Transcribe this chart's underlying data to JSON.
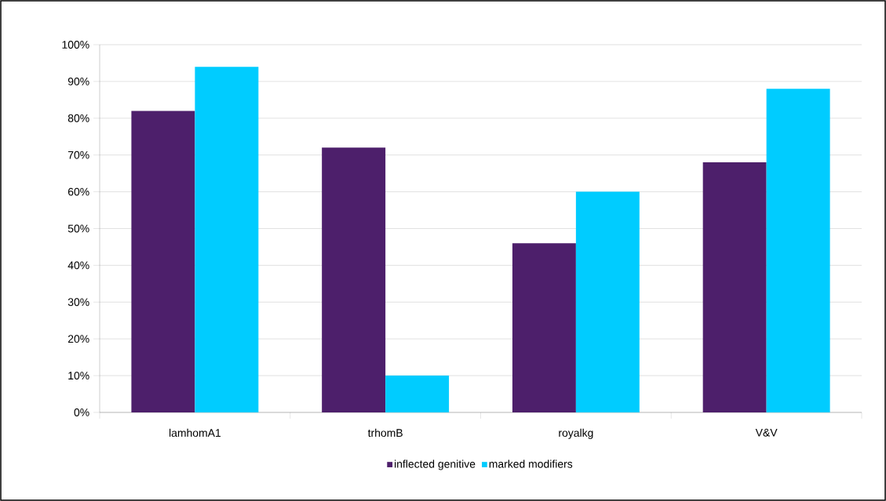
{
  "chart_data": {
    "type": "bar",
    "categories": [
      "lamhomA1",
      "trhomB",
      "royalkg",
      "V&V"
    ],
    "series": [
      {
        "name": "inflected genitive",
        "color": "#4d1f6b",
        "values": [
          82,
          72,
          46,
          68
        ]
      },
      {
        "name": "marked modifiers",
        "color": "#00ccff",
        "values": [
          94,
          10,
          60,
          88
        ]
      }
    ],
    "ylim": [
      0,
      100
    ],
    "yticks": [
      {
        "value": 0,
        "label": "0%"
      },
      {
        "value": 10,
        "label": "10%"
      },
      {
        "value": 20,
        "label": "20%"
      },
      {
        "value": 30,
        "label": "30%"
      },
      {
        "value": 40,
        "label": "40%"
      },
      {
        "value": 50,
        "label": "50%"
      },
      {
        "value": 60,
        "label": "60%"
      },
      {
        "value": 70,
        "label": "70%"
      },
      {
        "value": 80,
        "label": "80%"
      },
      {
        "value": 90,
        "label": "90%"
      },
      {
        "value": 100,
        "label": "100%"
      }
    ],
    "grid": "y",
    "legend": "bottom"
  }
}
